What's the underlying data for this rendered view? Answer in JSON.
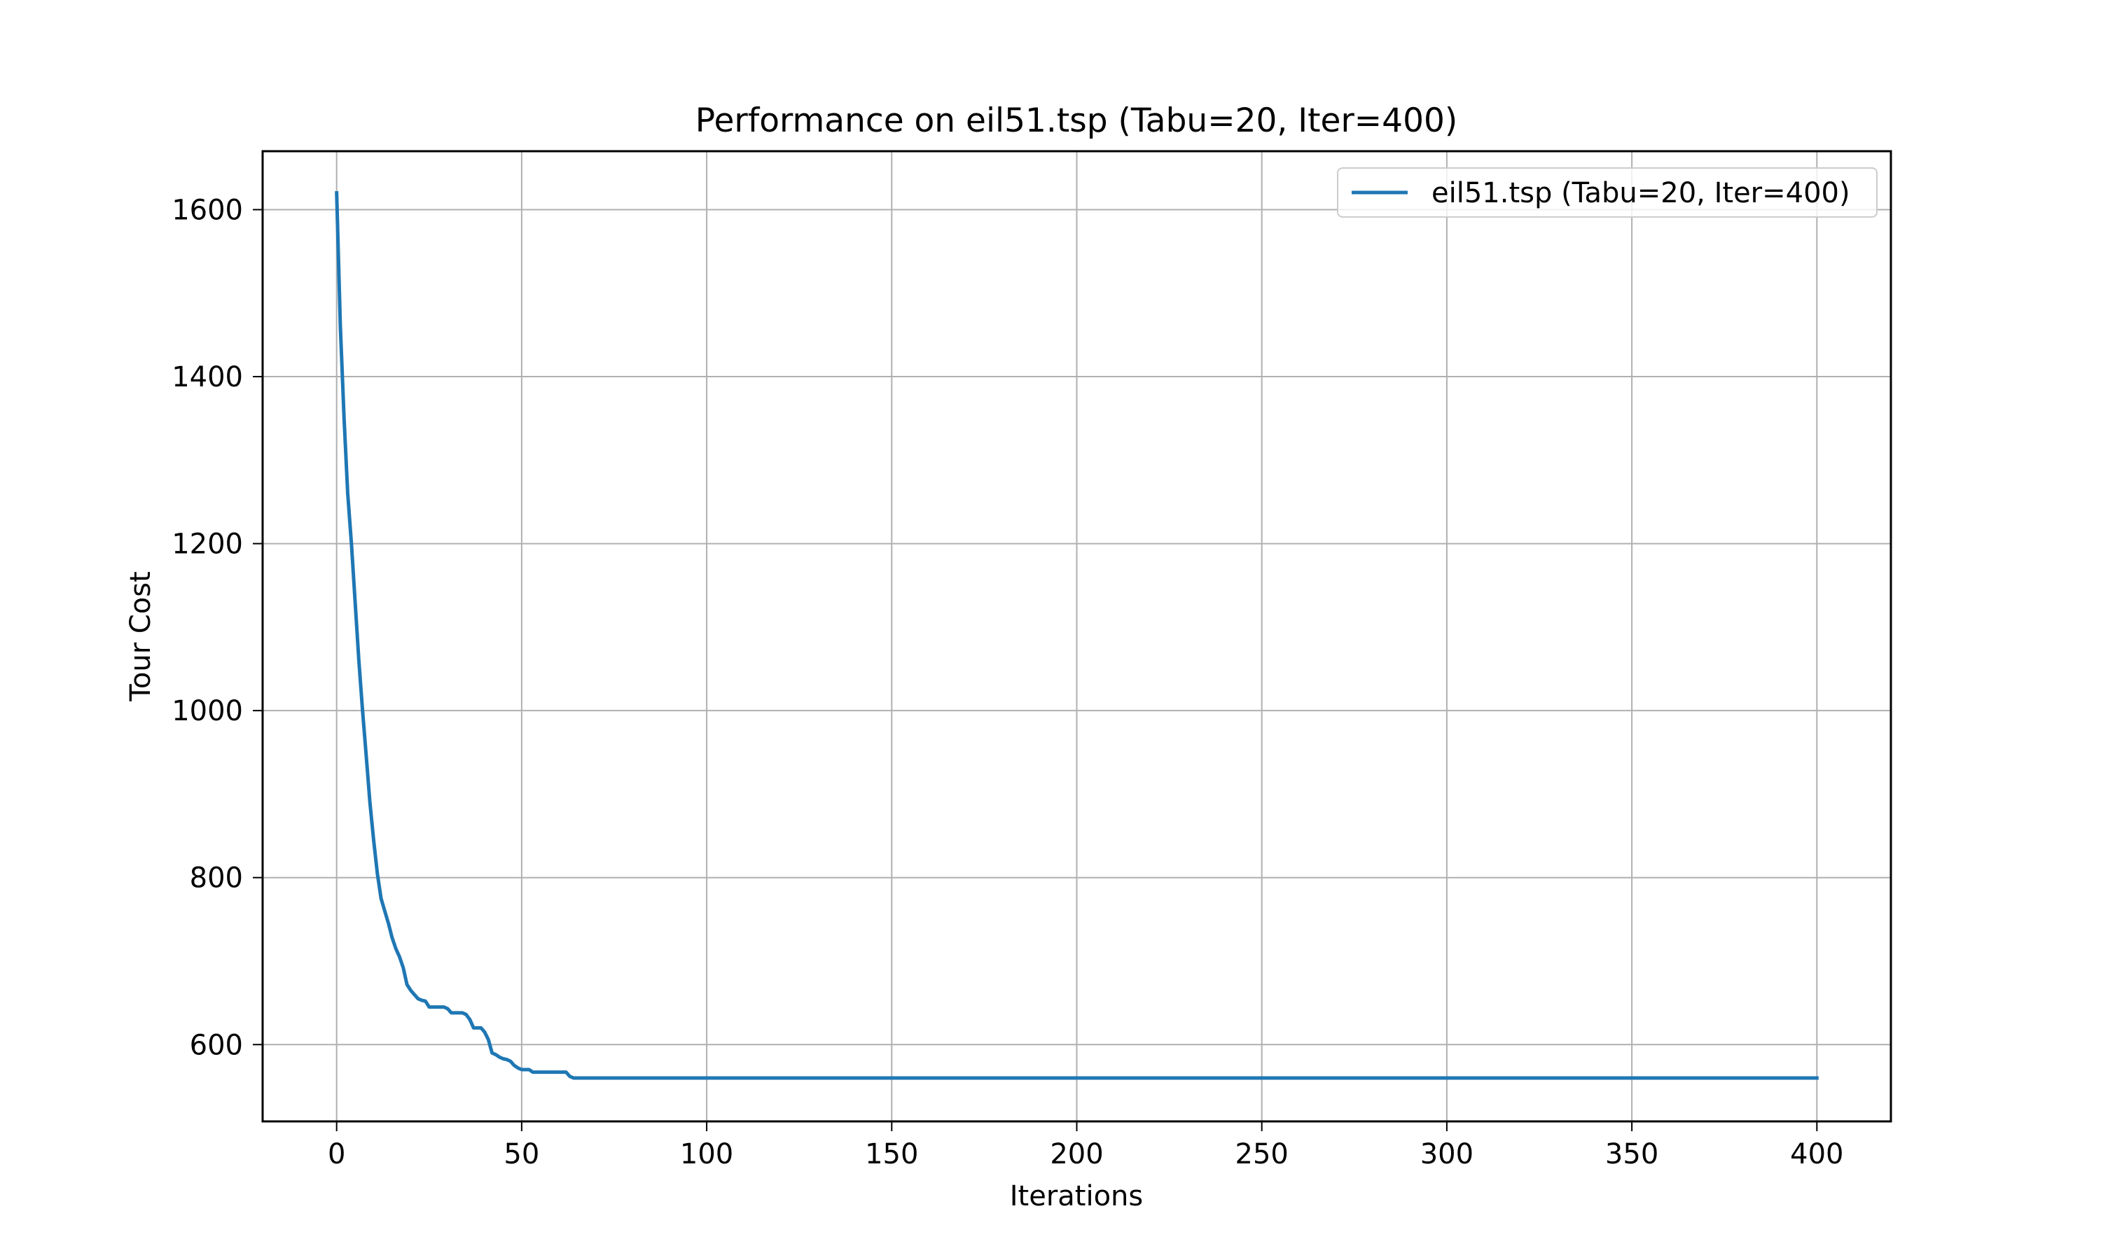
{
  "chart_data": {
    "type": "line",
    "title": "Performance on eil51.tsp (Tabu=20, Iter=400)",
    "xlabel": "Iterations",
    "ylabel": "Tour Cost",
    "xlim": [
      -20,
      420
    ],
    "ylim": [
      508,
      1670
    ],
    "xticks": [
      0,
      50,
      100,
      150,
      200,
      250,
      300,
      350,
      400
    ],
    "yticks": [
      600,
      800,
      1000,
      1200,
      1400,
      1600
    ],
    "grid": true,
    "legend_position": "top-right",
    "series": [
      {
        "name": "eil51.tsp (Tabu=20, Iter=400)",
        "color": "#1f77b4",
        "x": [
          0,
          1,
          2,
          3,
          4,
          5,
          6,
          7,
          8,
          9,
          10,
          11,
          12,
          13,
          14,
          15,
          16,
          17,
          18,
          19,
          20,
          21,
          22,
          23,
          24,
          25,
          26,
          27,
          28,
          29,
          30,
          31,
          32,
          33,
          34,
          35,
          36,
          37,
          38,
          39,
          40,
          41,
          42,
          43,
          44,
          45,
          46,
          47,
          48,
          49,
          50,
          51,
          52,
          53,
          54,
          55,
          56,
          57,
          58,
          59,
          60,
          61,
          62,
          63,
          64,
          65,
          66,
          67,
          68,
          69,
          70,
          75,
          100,
          150,
          200,
          250,
          300,
          350,
          400
        ],
        "y": [
          1620,
          1460,
          1350,
          1260,
          1200,
          1130,
          1060,
          1000,
          945,
          890,
          845,
          805,
          775,
          760,
          745,
          728,
          715,
          705,
          692,
          672,
          665,
          660,
          655,
          653,
          652,
          645,
          645,
          645,
          645,
          645,
          643,
          638,
          638,
          638,
          638,
          636,
          630,
          620,
          620,
          620,
          615,
          606,
          590,
          588,
          585,
          583,
          582,
          580,
          575,
          572,
          570,
          570,
          570,
          567,
          567,
          567,
          567,
          567,
          567,
          567,
          567,
          567,
          567,
          562,
          560,
          560,
          560,
          560,
          560,
          560,
          560,
          560,
          560,
          560,
          560,
          560,
          560,
          560,
          560
        ]
      }
    ]
  }
}
